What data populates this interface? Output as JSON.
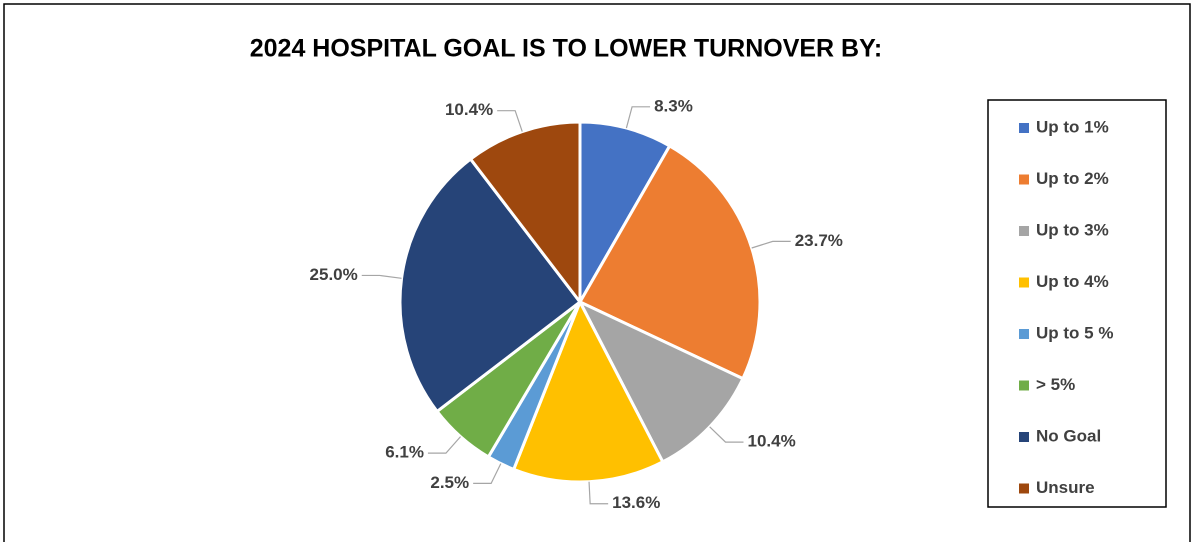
{
  "chart_data": {
    "type": "pie",
    "title": "2024 HOSPITAL GOAL IS TO LOWER TURNOVER BY:",
    "categories": [
      "Up to 1%",
      "Up to 2%",
      "Up to 3%",
      "Up to 4%",
      "Up to 5 %",
      "> 5%",
      "No Goal",
      "Unsure"
    ],
    "values": [
      8.3,
      23.7,
      10.4,
      13.6,
      2.5,
      6.1,
      25.0,
      10.4
    ],
    "value_labels": [
      "8.3%",
      "23.7%",
      "10.4%",
      "13.6%",
      "2.5%",
      "6.1%",
      "25.0%",
      "10.4%"
    ],
    "colors": [
      "#4472c4",
      "#ed7d31",
      "#a5a5a5",
      "#ffc000",
      "#5b9bd5",
      "#70ad47",
      "#264478",
      "#9e480e"
    ],
    "legend": "right"
  }
}
